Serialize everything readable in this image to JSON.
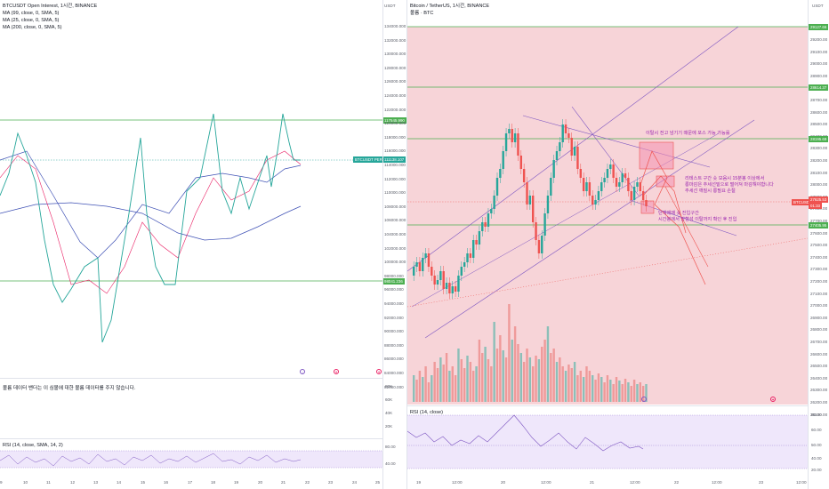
{
  "left_chart": {
    "legend": [
      "BTCUSDT Open Interest, 1시간, BINANCE",
      "MA (99, close, 0, SMA, 5)",
      "MA (25, close, 0, SMA, 5)",
      "MA (200, close, 0, SMA, 5)"
    ],
    "price_labels": [
      "117545.990",
      "BTCUSDT PERP_OI",
      "111138.107",
      "98041.236"
    ],
    "no_volume_msg": "볼륨 데이터 밴더는 이 심볼에 대한 볼륨 데이터를 주지 않습니다.",
    "rsi_legend": "RSI (14, close, SMA, 14, 2)",
    "rsi_levels": [
      "80.00",
      "40.00"
    ],
    "x_labels": [
      "9",
      "10",
      "11",
      "12",
      "13",
      "14",
      "15",
      "16",
      "17",
      "18",
      "19",
      "20",
      "21",
      "22",
      "23",
      "24",
      "25"
    ]
  },
  "middle_axis": {
    "top_label": "USDT",
    "price_levels": [
      "134000.000",
      "132000.000",
      "130000.000",
      "128000.000",
      "126000.000",
      "124000.000",
      "122000.000",
      "120000.000",
      "118000.000",
      "116000.000",
      "114000.000",
      "112000.000",
      "110000.000",
      "108000.000",
      "106000.000",
      "104000.000",
      "102000.000",
      "100000.000",
      "98000.000",
      "96000.000",
      "94000.000",
      "92000.000",
      "90000.000",
      "88000.000",
      "86000.000",
      "84000.000",
      "82000.000"
    ],
    "volume_levels": [
      "80K",
      "60K",
      "40K",
      "20K"
    ]
  },
  "right_chart": {
    "legend": [
      "Bitcoin / TetherUS, 1시간, BINANCE",
      "볼륨 · BTC"
    ],
    "axis_top": "USDT",
    "price_levels": [
      "29200.00",
      "29100.00",
      "29000.00",
      "28900.00",
      "28800.00",
      "28700.00",
      "28600.00",
      "28500.00",
      "28400.00",
      "28300.00",
      "28200.00",
      "28100.00",
      "28000.00",
      "27900.00",
      "27800.00",
      "27700.00",
      "27600.00",
      "27500.00",
      "27400.00",
      "27300.00",
      "27200.00",
      "27100.00",
      "27000.00",
      "26900.00",
      "26800.00",
      "26700.00",
      "26600.00",
      "26500.00",
      "26400.00",
      "26300.00",
      "26200.00",
      "26100.00"
    ],
    "price_tags": [
      "29127.66",
      "28614.37",
      "28195.69",
      "BTCUSDT",
      "27625.53",
      "01:33",
      "27405.95"
    ],
    "annotations": [
      "이탈시 전고 넘기기 때문에 포스 가능 가능률",
      "리테스트 구간 숏 모음시 15분봉 이상에서",
      "롱마감은 추세선밑으로 떨어져 마감해야합니다",
      "추세선 깨질시 롱필요 손절",
      "단계매매 숏 진입구간",
      "시간봉에서 방향성 이탈까지 확인 후 진입"
    ],
    "rsi_legend": "RSI (14, close)",
    "rsi_levels": [
      "80.00",
      "60.00",
      "50.00",
      "40.00",
      "20.00"
    ],
    "x_labels": [
      "19",
      "12:00",
      "20",
      "12:00",
      "21",
      "12:00",
      "22",
      "12:00",
      "23",
      "12:00"
    ]
  },
  "colors": {
    "up": "#26a69a",
    "down": "#ef5350",
    "green_line": "#4caf50",
    "purple": "#7e57c2",
    "pink_bg": "#f7d4d8",
    "rsi_bg": "#efe7fb"
  }
}
